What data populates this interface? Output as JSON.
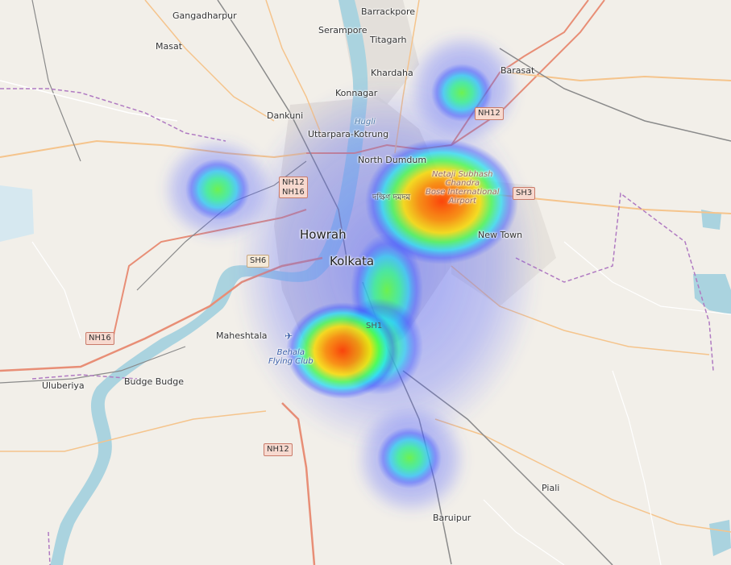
{
  "labels": {
    "barrackpore": "Barrackpore",
    "gangadharpur": "Gangadharpur",
    "serampore": "Serampore",
    "titagarh": "Titagarh",
    "masat": "Masat",
    "barasat": "Barasat",
    "khardaha": "Khardaha",
    "konnagar": "Konnagar",
    "dankuni": "Dankuni",
    "hugli": "Hugli",
    "uttarpara": "Uttarpara-Kotrung",
    "north_dumdum": "North Dumdum",
    "howrah": "Howrah",
    "kolkata": "Kolkata",
    "new_town": "New Town",
    "maheshtala": "Maheshtala",
    "behala": "Behala\nFlying Club",
    "budge_budge": "Budge Budge",
    "uluberiya": "Uluberiya",
    "piali": "Piali",
    "baruipur": "Baruipur",
    "airport": "Netaji Subhash\nChandra\nBose International\nAirport",
    "dakshin_dumdum": "দক্ষিণ দমদম"
  },
  "shields": {
    "nh12_top": "NH12",
    "nh12_nh16": "NH12\nNH16",
    "sh3": "SH3",
    "sh6": "SH6",
    "nh16": "NH16",
    "nh12_bottom": "NH12",
    "sh1": "SH1"
  },
  "heatmap": {
    "gradient": [
      "#0000ff",
      "#00ffff",
      "#00ff00",
      "#ffff00",
      "#ff8000",
      "#ff0000"
    ],
    "hotspots": [
      {
        "area": "Airport / North Dumdum",
        "intensity": 1.0
      },
      {
        "area": "Behala",
        "intensity": 0.85
      },
      {
        "area": "Central Kolkata",
        "intensity": 0.55
      },
      {
        "area": "Barasat",
        "intensity": 0.45
      },
      {
        "area": "West of Howrah",
        "intensity": 0.45
      },
      {
        "area": "South near Baruipur",
        "intensity": 0.45
      }
    ]
  },
  "colors": {
    "land": "#f2efe9",
    "water": "#aad3df",
    "motorway": "#f0a58f",
    "primary": "#fcd6a4",
    "boundary": "#b07ac2",
    "railway": "#888888"
  }
}
